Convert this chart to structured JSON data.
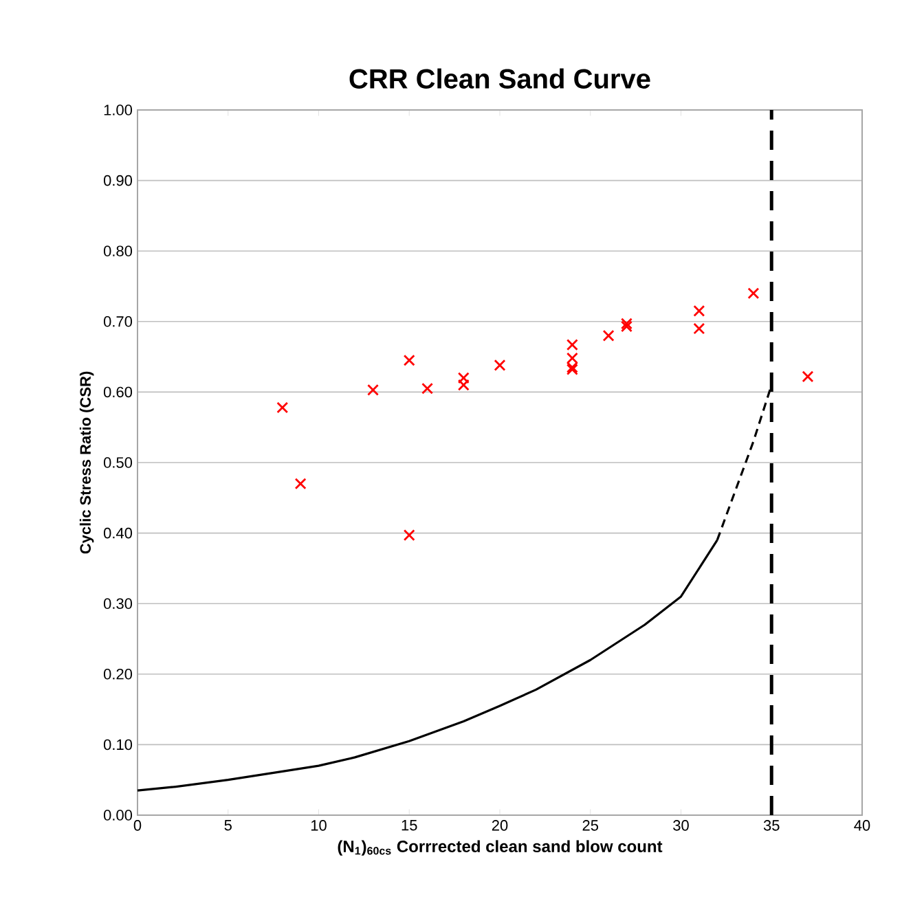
{
  "chart_data": {
    "type": "scatter",
    "title": "CRR Clean Sand Curve",
    "xlabel": "(N$_{1}$)$_{60cs}$ Corrrected clean sand blow count",
    "ylabel": "Cyclic Stress Ratio (CSR)",
    "xlim": [
      0,
      40
    ],
    "ylim": [
      0,
      1
    ],
    "xticks": [
      0,
      5,
      10,
      15,
      20,
      25,
      30,
      35,
      40
    ],
    "yticks": [
      {
        "value": 0,
        "label": "0.00"
      },
      {
        "value": 0.1,
        "label": "0.10"
      },
      {
        "value": 0.2,
        "label": "0.20"
      },
      {
        "value": 0.3,
        "label": "0.30"
      },
      {
        "value": 0.4,
        "label": "0.40"
      },
      {
        "value": 0.5,
        "label": "0.50"
      },
      {
        "value": 0.6,
        "label": "0.60"
      },
      {
        "value": 0.7,
        "label": "0.70"
      },
      {
        "value": 0.8,
        "label": "0.80"
      },
      {
        "value": 0.9,
        "label": "0.90"
      },
      {
        "value": 1,
        "label": "1.00"
      }
    ],
    "grid": "y",
    "series": [
      {
        "color": "#ff0000",
        "marker": "cross",
        "x": [
          8,
          9,
          13,
          15,
          15,
          16,
          18,
          18,
          20,
          24,
          24,
          24,
          24,
          26,
          27,
          27,
          31,
          31,
          34,
          37
        ],
        "values": [
          0.578,
          0.47,
          0.603,
          0.645,
          0.397,
          0.605,
          0.62,
          0.61,
          0.638,
          0.667,
          0.648,
          0.635,
          0.632,
          0.68,
          0.697,
          0.693,
          0.715,
          0.69,
          0.74,
          0.622
        ]
      },
      {
        "type": "line",
        "color": "#000000",
        "line_style": "solid",
        "marker": "none",
        "x": [
          0,
          2,
          5,
          8,
          10,
          12,
          15,
          18,
          20,
          22,
          25,
          28,
          30,
          32
        ],
        "values": [
          0.035,
          0.04,
          0.05,
          0.062,
          0.07,
          0.082,
          0.105,
          0.133,
          0.155,
          0.178,
          0.22,
          0.27,
          0.31,
          0.39
        ]
      },
      {
        "type": "line",
        "color": "#000000",
        "line_style": "dashed",
        "marker": "none",
        "x": [
          32,
          33,
          34,
          35
        ],
        "values": [
          0.39,
          0.46,
          0.53,
          0.61
        ]
      }
    ],
    "ref_lines": [
      {
        "axis": "x",
        "value": 35,
        "color": "#000000",
        "line_style": "dashed"
      }
    ]
  }
}
